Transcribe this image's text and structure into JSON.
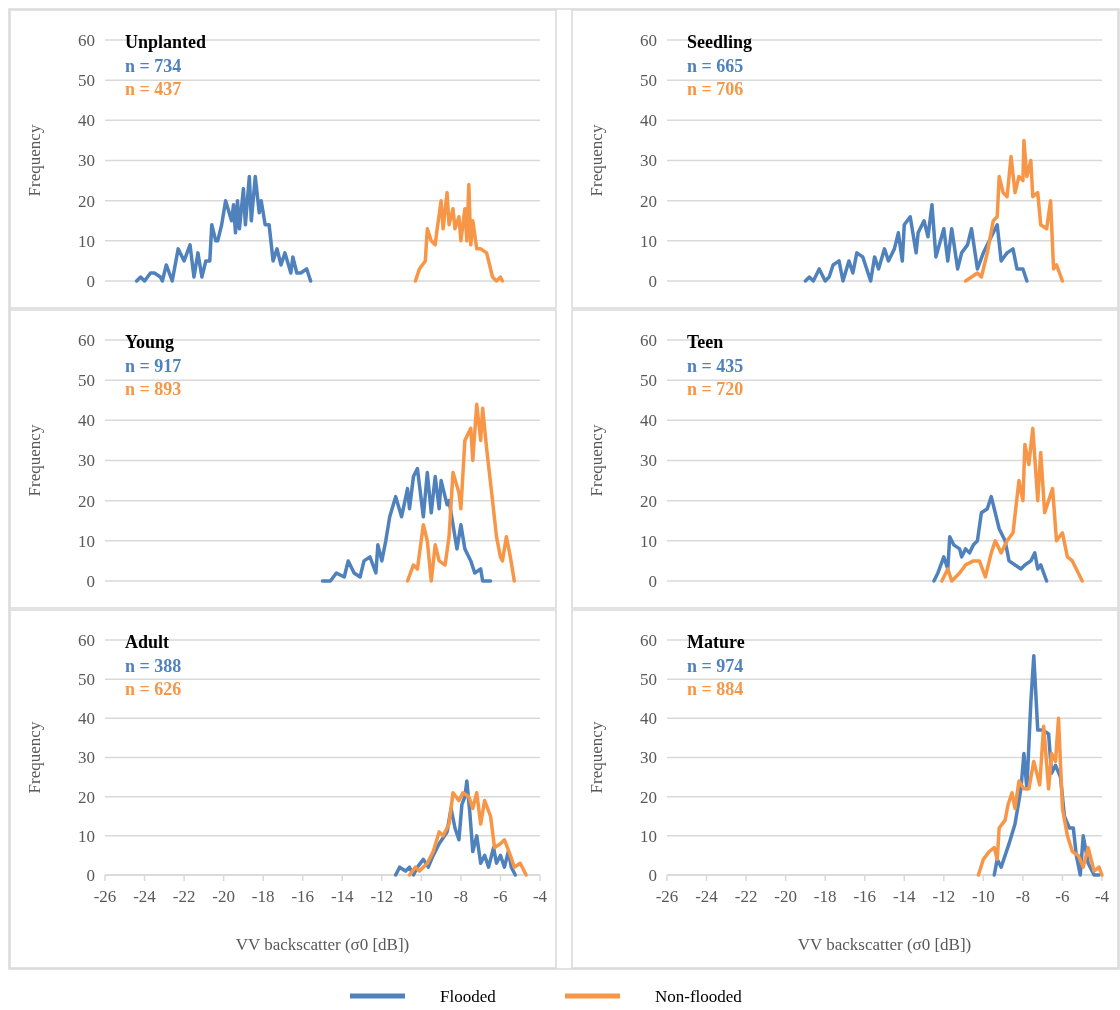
{
  "chart_data": [
    {
      "type": "line",
      "title": "Unplanted",
      "annotations": [
        "n = 734",
        "n = 437"
      ],
      "ylabel": "Frequency",
      "xlim": [
        -26,
        -4
      ],
      "ylim": [
        0,
        60
      ],
      "yticks": [
        0,
        10,
        20,
        30,
        40,
        50,
        60
      ],
      "grid": "y",
      "tick_labels": "y",
      "legend": "bottom",
      "series": [
        {
          "name": "Flooded",
          "color": "#4f81bd",
          "x": [
            -24.4,
            -24.2,
            -24.0,
            -23.7,
            -23.5,
            -23.2,
            -23.1,
            -22.9,
            -22.6,
            -22.3,
            -22.0,
            -21.7,
            -21.5,
            -21.3,
            -21.1,
            -20.9,
            -20.7,
            -20.6,
            -20.4,
            -20.3,
            -20.1,
            -19.9,
            -19.6,
            -19.5,
            -19.4,
            -19.3,
            -19.2,
            -19.0,
            -18.9,
            -18.7,
            -18.6,
            -18.4,
            -18.2,
            -18.1,
            -17.9,
            -17.7,
            -17.5,
            -17.3,
            -17.1,
            -16.9,
            -16.6,
            -16.5,
            -16.3,
            -16.1,
            -15.8,
            -15.6
          ],
          "values": [
            0,
            1,
            0,
            2,
            2,
            1,
            0,
            4,
            0,
            8,
            5,
            9,
            1,
            7,
            1,
            5,
            5,
            14,
            10,
            10,
            14,
            20,
            15,
            19,
            12,
            20,
            13,
            23,
            14,
            26,
            15,
            26,
            17,
            20,
            14,
            14,
            5,
            8,
            4,
            7,
            2,
            6,
            2,
            2,
            3,
            0
          ]
        },
        {
          "name": "Non-flooded",
          "color": "#f79646",
          "x": [
            -10.3,
            -10.1,
            -9.8,
            -9.7,
            -9.5,
            -9.3,
            -9.2,
            -9.0,
            -8.9,
            -8.7,
            -8.6,
            -8.4,
            -8.3,
            -8.1,
            -8.0,
            -7.8,
            -7.7,
            -7.6,
            -7.5,
            -7.4,
            -7.2,
            -7.0,
            -6.7,
            -6.4,
            -6.2,
            -6.0,
            -5.9
          ],
          "values": [
            0,
            3,
            5,
            13,
            10,
            9,
            13,
            20,
            13,
            22,
            14,
            18,
            13,
            16,
            10,
            18,
            10,
            24,
            9,
            15,
            8,
            8,
            7,
            1,
            0,
            1,
            0
          ]
        }
      ]
    },
    {
      "type": "line",
      "title": "Seedling",
      "annotations": [
        "n = 665",
        "n = 706"
      ],
      "ylabel": "Frequency",
      "xlim": [
        -26,
        -4
      ],
      "ylim": [
        0,
        60
      ],
      "yticks": [
        0,
        10,
        20,
        30,
        40,
        50,
        60
      ],
      "grid": "y",
      "tick_labels": "y",
      "legend": "bottom",
      "series": [
        {
          "name": "Flooded",
          "color": "#4f81bd",
          "x": [
            -19.0,
            -18.8,
            -18.6,
            -18.3,
            -18.0,
            -17.8,
            -17.6,
            -17.3,
            -17.1,
            -16.8,
            -16.6,
            -16.4,
            -16.1,
            -15.9,
            -15.7,
            -15.5,
            -15.3,
            -15.0,
            -14.8,
            -14.5,
            -14.3,
            -14.1,
            -14.0,
            -13.7,
            -13.4,
            -13.3,
            -13.0,
            -12.8,
            -12.6,
            -12.4,
            -12.0,
            -11.8,
            -11.6,
            -11.3,
            -11.1,
            -10.8,
            -10.6,
            -10.3,
            -10.0,
            -9.7,
            -9.3,
            -9.1,
            -8.8,
            -8.5,
            -8.3,
            -8.0,
            -7.8
          ],
          "values": [
            0,
            1,
            0,
            3,
            0,
            1,
            4,
            5,
            0,
            5,
            2,
            7,
            6,
            3,
            0,
            6,
            3,
            8,
            5,
            8,
            12,
            5,
            14,
            16,
            7,
            12,
            15,
            11,
            19,
            6,
            13,
            5,
            13,
            3,
            7,
            9,
            13,
            3,
            7,
            10,
            14,
            5,
            7,
            8,
            3,
            3,
            0
          ]
        },
        {
          "name": "Non-flooded",
          "color": "#f79646",
          "x": [
            -10.9,
            -10.6,
            -10.3,
            -10.1,
            -9.8,
            -9.5,
            -9.3,
            -9.2,
            -9.0,
            -8.8,
            -8.6,
            -8.4,
            -8.2,
            -8.0,
            -7.95,
            -7.8,
            -7.6,
            -7.5,
            -7.25,
            -7.1,
            -6.8,
            -6.6,
            -6.45,
            -6.3,
            -6.0
          ],
          "values": [
            0,
            1,
            2,
            1,
            7,
            15,
            16,
            26,
            22,
            21,
            31,
            22,
            26,
            25,
            35,
            26,
            30,
            21,
            22,
            14,
            13,
            20,
            3,
            4,
            0
          ]
        }
      ]
    },
    {
      "type": "line",
      "title": "Young",
      "annotations": [
        "n = 917",
        "n = 893"
      ],
      "ylabel": "Frequency",
      "xlim": [
        -26,
        -4
      ],
      "ylim": [
        0,
        60
      ],
      "yticks": [
        0,
        10,
        20,
        30,
        40,
        50,
        60
      ],
      "grid": "y",
      "tick_labels": "y",
      "legend": "bottom",
      "series": [
        {
          "name": "Flooded",
          "color": "#4f81bd",
          "x": [
            -15.0,
            -14.6,
            -14.3,
            -13.9,
            -13.7,
            -13.4,
            -13.1,
            -12.9,
            -12.6,
            -12.3,
            -12.2,
            -12.0,
            -11.8,
            -11.6,
            -11.3,
            -11.0,
            -10.7,
            -10.6,
            -10.4,
            -10.2,
            -9.9,
            -9.7,
            -9.5,
            -9.3,
            -9.1,
            -9.0,
            -8.7,
            -8.6,
            -8.4,
            -8.2,
            -8.0,
            -7.8,
            -7.5,
            -7.3,
            -7.0,
            -6.9,
            -6.5
          ],
          "values": [
            0,
            0,
            2,
            1,
            5,
            2,
            1,
            5,
            6,
            2,
            9,
            5,
            10,
            16,
            21,
            16,
            23,
            18,
            26,
            28,
            16,
            27,
            17,
            26,
            18,
            25,
            19,
            20,
            14,
            8,
            14,
            8,
            5,
            2,
            3,
            0,
            0
          ]
        },
        {
          "name": "Non-flooded",
          "color": "#f79646",
          "x": [
            -10.7,
            -10.4,
            -10.2,
            -9.9,
            -9.7,
            -9.5,
            -9.3,
            -9.1,
            -8.8,
            -8.6,
            -8.4,
            -8.1,
            -8.0,
            -7.8,
            -7.5,
            -7.4,
            -7.2,
            -7.0,
            -6.9,
            -6.7,
            -6.4,
            -6.2,
            -6.0,
            -5.9,
            -5.7,
            -5.5,
            -5.3
          ],
          "values": [
            0,
            4,
            3,
            14,
            10,
            0,
            9,
            5,
            4,
            11,
            27,
            22,
            18,
            35,
            38,
            30,
            44,
            35,
            43,
            33,
            20,
            11,
            6,
            5,
            11,
            6,
            0
          ]
        }
      ]
    },
    {
      "type": "line",
      "title": "Teen",
      "annotations": [
        "n = 435",
        "n = 720"
      ],
      "ylabel": "Frequency",
      "xlim": [
        -26,
        -4
      ],
      "ylim": [
        0,
        60
      ],
      "yticks": [
        0,
        10,
        20,
        30,
        40,
        50,
        60
      ],
      "grid": "y",
      "tick_labels": "y",
      "legend": "bottom",
      "series": [
        {
          "name": "Flooded",
          "color": "#4f81bd",
          "x": [
            -12.5,
            -12.3,
            -12.0,
            -11.8,
            -11.7,
            -11.5,
            -11.2,
            -11.1,
            -10.9,
            -10.7,
            -10.5,
            -10.3,
            -10.1,
            -9.8,
            -9.6,
            -9.5,
            -9.2,
            -8.9,
            -8.7,
            -8.4,
            -8.1,
            -7.9,
            -7.6,
            -7.4,
            -7.25,
            -7.1,
            -6.8
          ],
          "values": [
            0,
            2,
            6,
            3,
            11,
            9,
            8,
            6,
            8,
            7,
            9,
            10,
            17,
            18,
            21,
            19,
            13,
            10,
            5,
            4,
            3,
            4,
            5,
            7,
            3,
            4,
            0
          ]
        },
        {
          "name": "Non-flooded",
          "color": "#f79646",
          "x": [
            -12.1,
            -11.8,
            -11.6,
            -11.2,
            -10.9,
            -10.5,
            -10.2,
            -9.9,
            -9.6,
            -9.4,
            -9.1,
            -8.8,
            -8.5,
            -8.2,
            -8.0,
            -7.9,
            -7.7,
            -7.5,
            -7.25,
            -7.1,
            -6.9,
            -6.5,
            -6.3,
            -6.0,
            -5.75,
            -5.5,
            -5.2,
            -5.0
          ],
          "values": [
            0,
            3,
            0,
            2,
            4,
            5,
            5,
            1,
            7,
            10,
            7,
            10,
            12,
            25,
            20,
            34,
            29,
            38,
            20,
            32,
            17,
            23,
            10,
            12,
            6,
            5,
            2,
            0
          ]
        }
      ]
    },
    {
      "type": "line",
      "title": "Adult",
      "annotations": [
        "n = 388",
        "n = 626"
      ],
      "xlabel": "VV backscatter (σ0 [dB])",
      "ylabel": "Frequency",
      "xlim": [
        -26,
        -4
      ],
      "xticks": [
        -26,
        -24,
        -22,
        -20,
        -18,
        -16,
        -14,
        -12,
        -10,
        -8,
        -6,
        -4
      ],
      "ylim": [
        0,
        60
      ],
      "yticks": [
        0,
        10,
        20,
        30,
        40,
        50,
        60
      ],
      "grid": "y",
      "legend": "bottom",
      "series": [
        {
          "name": "Flooded",
          "color": "#4f81bd",
          "x": [
            -11.3,
            -11.1,
            -10.8,
            -10.6,
            -10.4,
            -10.2,
            -9.9,
            -9.65,
            -9.4,
            -9.1,
            -8.7,
            -8.5,
            -8.3,
            -8.1,
            -7.95,
            -7.8,
            -7.7,
            -7.55,
            -7.4,
            -7.2,
            -7.0,
            -6.8,
            -6.6,
            -6.35,
            -6.2,
            -6.0,
            -5.8,
            -5.6,
            -5.45,
            -5.25
          ],
          "values": [
            0,
            2,
            1,
            2,
            0,
            2,
            4,
            2,
            5,
            8,
            11,
            17,
            12,
            9,
            18,
            20,
            24,
            16,
            6,
            10,
            3,
            5,
            2,
            7,
            3,
            5,
            2,
            6,
            2,
            0
          ]
        },
        {
          "name": "Non-flooded",
          "color": "#f79646",
          "x": [
            -10.6,
            -10.3,
            -10.1,
            -9.7,
            -9.4,
            -9.1,
            -8.9,
            -8.6,
            -8.4,
            -8.1,
            -7.9,
            -7.6,
            -7.4,
            -7.2,
            -7.0,
            -6.8,
            -6.5,
            -6.3,
            -6.0,
            -5.8,
            -5.5,
            -5.3,
            -5.0,
            -4.7
          ],
          "values": [
            0,
            2,
            1,
            3,
            6,
            11,
            10,
            13,
            21,
            19,
            21,
            20,
            17,
            21,
            13,
            19,
            15,
            7,
            8,
            9,
            5,
            2,
            3,
            0
          ]
        }
      ]
    },
    {
      "type": "line",
      "title": "Mature",
      "annotations": [
        "n = 974",
        "n = 884"
      ],
      "xlabel": "VV backscatter (σ0 [dB])",
      "ylabel": "Frequency",
      "xlim": [
        -26,
        -4
      ],
      "xticks": [
        -26,
        -24,
        -22,
        -20,
        -18,
        -16,
        -14,
        -12,
        -10,
        -8,
        -6,
        -4
      ],
      "ylim": [
        0,
        60
      ],
      "yticks": [
        0,
        10,
        20,
        30,
        40,
        50,
        60
      ],
      "grid": "y",
      "legend": "bottom",
      "series": [
        {
          "name": "Flooded",
          "color": "#4f81bd",
          "x": [
            -9.45,
            -9.3,
            -9.1,
            -8.9,
            -8.7,
            -8.4,
            -8.1,
            -7.95,
            -7.8,
            -7.6,
            -7.45,
            -7.25,
            -7.0,
            -6.7,
            -6.55,
            -6.35,
            -6.1,
            -5.9,
            -5.65,
            -5.45,
            -5.3,
            -5.1,
            -4.95,
            -4.7,
            -4.4,
            -4.15
          ],
          "values": [
            0,
            4,
            2,
            5,
            8,
            13,
            22,
            31,
            22,
            44,
            56,
            37,
            37,
            36,
            26,
            28,
            25,
            15,
            12,
            12,
            5,
            0,
            10,
            3,
            0,
            0
          ]
        },
        {
          "name": "Non-flooded",
          "color": "#f79646",
          "x": [
            -10.25,
            -10.0,
            -9.7,
            -9.45,
            -9.3,
            -9.2,
            -8.9,
            -8.75,
            -8.55,
            -8.4,
            -8.2,
            -7.95,
            -7.7,
            -7.45,
            -7.15,
            -6.95,
            -6.7,
            -6.55,
            -6.35,
            -6.2,
            -6.0,
            -5.75,
            -5.5,
            -5.2,
            -4.95,
            -4.7,
            -4.4,
            -4.15,
            -4.0
          ],
          "values": [
            0,
            4,
            6,
            7,
            4,
            12,
            14,
            18,
            21,
            17,
            24,
            22,
            22,
            29,
            23,
            38,
            22,
            31,
            29,
            40,
            17,
            10,
            6,
            5,
            2,
            7,
            1,
            2,
            0
          ]
        }
      ]
    }
  ]
}
